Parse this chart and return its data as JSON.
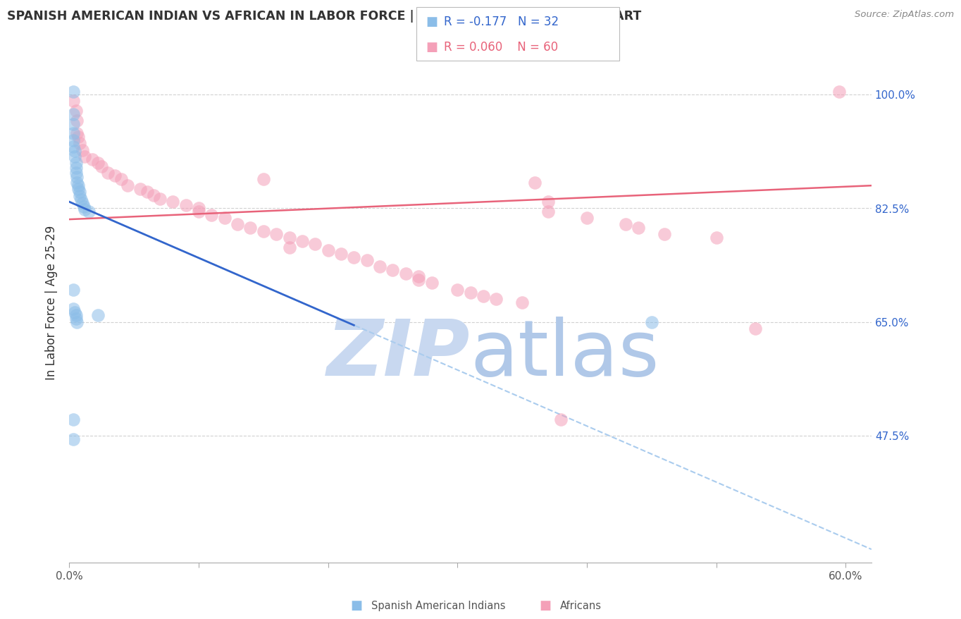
{
  "title": "SPANISH AMERICAN INDIAN VS AFRICAN IN LABOR FORCE | AGE 25-29 CORRELATION CHART",
  "source": "Source: ZipAtlas.com",
  "ylabel": "In Labor Force | Age 25-29",
  "xlim": [
    0.0,
    0.62
  ],
  "ylim": [
    0.28,
    1.08
  ],
  "xticks": [
    0.0,
    0.1,
    0.2,
    0.3,
    0.4,
    0.5,
    0.6
  ],
  "xtick_labels": [
    "0.0%",
    "",
    "",
    "",
    "",
    "",
    "60.0%"
  ],
  "ytick_positions": [
    0.475,
    0.65,
    0.825,
    1.0
  ],
  "ytick_labels": [
    "47.5%",
    "65.0%",
    "82.5%",
    "100.0%"
  ],
  "grid_color": "#cccccc",
  "background_color": "#ffffff",
  "blue_color": "#8bbde8",
  "pink_color": "#f4a0b8",
  "blue_line_color": "#3366cc",
  "pink_line_color": "#e8637a",
  "blue_dashed_color": "#aaccee",
  "legend_R_blue": "-0.177",
  "legend_N_blue": "32",
  "legend_R_pink": "0.060",
  "legend_N_pink": "60",
  "blue_line_x0": 0.0,
  "blue_line_y0": 0.835,
  "blue_line_x1": 0.22,
  "blue_line_y1": 0.645,
  "blue_line_xend": 0.62,
  "blue_line_yend": 0.3,
  "pink_line_x0": 0.0,
  "pink_line_y0": 0.808,
  "pink_line_x1": 0.62,
  "pink_line_y1": 0.86,
  "blue_scatter_x": [
    0.003,
    0.003,
    0.003,
    0.003,
    0.003,
    0.003,
    0.004,
    0.004,
    0.005,
    0.005,
    0.005,
    0.006,
    0.006,
    0.007,
    0.007,
    0.008,
    0.008,
    0.009,
    0.01,
    0.011,
    0.012,
    0.015,
    0.003,
    0.003,
    0.004,
    0.005,
    0.005,
    0.006,
    0.022,
    0.003,
    0.003,
    0.45
  ],
  "blue_scatter_y": [
    1.005,
    0.97,
    0.955,
    0.94,
    0.93,
    0.92,
    0.913,
    0.905,
    0.895,
    0.887,
    0.88,
    0.873,
    0.865,
    0.86,
    0.855,
    0.85,
    0.844,
    0.838,
    0.833,
    0.828,
    0.823,
    0.82,
    0.7,
    0.67,
    0.665,
    0.66,
    0.655,
    0.65,
    0.66,
    0.5,
    0.47,
    0.65
  ],
  "pink_scatter_x": [
    0.003,
    0.005,
    0.006,
    0.006,
    0.007,
    0.008,
    0.01,
    0.012,
    0.018,
    0.022,
    0.025,
    0.03,
    0.035,
    0.04,
    0.045,
    0.055,
    0.06,
    0.065,
    0.07,
    0.08,
    0.09,
    0.1,
    0.1,
    0.11,
    0.12,
    0.13,
    0.14,
    0.15,
    0.16,
    0.17,
    0.18,
    0.19,
    0.2,
    0.21,
    0.22,
    0.23,
    0.24,
    0.25,
    0.26,
    0.27,
    0.27,
    0.28,
    0.3,
    0.31,
    0.32,
    0.33,
    0.35,
    0.37,
    0.37,
    0.4,
    0.43,
    0.44,
    0.46,
    0.5,
    0.53,
    0.36,
    0.15,
    0.17,
    0.38,
    0.595
  ],
  "pink_scatter_y": [
    0.99,
    0.975,
    0.96,
    0.94,
    0.935,
    0.925,
    0.915,
    0.905,
    0.9,
    0.895,
    0.89,
    0.88,
    0.875,
    0.87,
    0.86,
    0.855,
    0.85,
    0.845,
    0.84,
    0.835,
    0.83,
    0.825,
    0.82,
    0.815,
    0.81,
    0.8,
    0.795,
    0.79,
    0.785,
    0.78,
    0.775,
    0.77,
    0.76,
    0.755,
    0.75,
    0.745,
    0.735,
    0.73,
    0.725,
    0.72,
    0.715,
    0.71,
    0.7,
    0.695,
    0.69,
    0.685,
    0.68,
    0.835,
    0.82,
    0.81,
    0.8,
    0.795,
    0.785,
    0.78,
    0.64,
    0.865,
    0.87,
    0.765,
    0.5,
    1.005
  ],
  "watermark_zip": "ZIP",
  "watermark_atlas": "atlas",
  "watermark_color_zip": "#c8d8f0",
  "watermark_color_atlas": "#b0c8e8",
  "watermark_fontsize": 80
}
